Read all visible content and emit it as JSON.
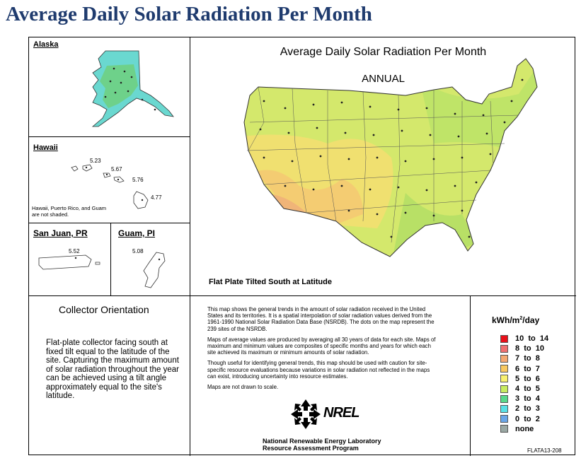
{
  "slide_title": "Average Daily Solar Radiation Per Month",
  "map": {
    "title": "Average Daily Solar Radiation Per Month",
    "subtitle": "ANNUAL",
    "caption": "Flat Plate Tilted South at Latitude"
  },
  "insets": {
    "alaska": {
      "label": "Alaska"
    },
    "hawaii": {
      "label": "Hawaii",
      "values": [
        "5.23",
        "5.67",
        "5.76",
        "4.77"
      ],
      "note": "Hawaii, Puerto Rico, and Guam are not shaded."
    },
    "san_juan": {
      "label": "San Juan, PR",
      "value": "5.52"
    },
    "guam": {
      "label": "Guam, PI",
      "value": "5.08"
    }
  },
  "collector": {
    "title": "Collector Orientation",
    "text": "Flat-plate collector facing south at fixed tilt equal to the latitude of the site. Capturing the maximum amount of solar radiation throughout the year can be achieved using a tilt angle approximately equal to the site's latitude."
  },
  "description": [
    "This map shows the general trends in the amount of solar radiation received in the United States and its territories. It is a spatial interpolation of solar radiation values derived from the 1961-1990 National Solar Radiation Data Base (NSRDB). The dots on the map represent the 239 sites of the NSRDB.",
    "Maps of average values are produced by averaging all 30 years of data for each site. Maps of maximum and minimum values are composites of specific months and years for which each site achieved its maximum or minimum amounts of solar radiation.",
    "Though useful for identifying general trends, this map should be used with caution for site-specific resource evaluations because variations in solar radiation not reflected in the maps can exist, introducing uncertainty into resource estimates.",
    "Maps are not drawn to scale."
  ],
  "legend": {
    "unit_prefix": "kWh/m",
    "unit_sup": "2",
    "unit_suffix": "/day",
    "items": [
      {
        "range": "10  to  14",
        "color": "#e8101a"
      },
      {
        "range": "8  to  10",
        "color": "#f07070"
      },
      {
        "range": "7  to  8",
        "color": "#f4a872"
      },
      {
        "range": "6  to  7",
        "color": "#f8c860"
      },
      {
        "range": "5  to  6",
        "color": "#f8f070"
      },
      {
        "range": "4  to  5",
        "color": "#c8ec60"
      },
      {
        "range": "3  to  4",
        "color": "#58d88a"
      },
      {
        "range": "2  to  3",
        "color": "#58e0e6"
      },
      {
        "range": "0  to  2",
        "color": "#6aa6e8"
      },
      {
        "range": "none",
        "color": "#9aa8a4"
      }
    ]
  },
  "nrel": {
    "logo_text": "NREL",
    "name_line1": "National Renewable Energy Laboratory",
    "name_line2": "Resource Assessment Program"
  },
  "figure_id": "FLATA13-208"
}
